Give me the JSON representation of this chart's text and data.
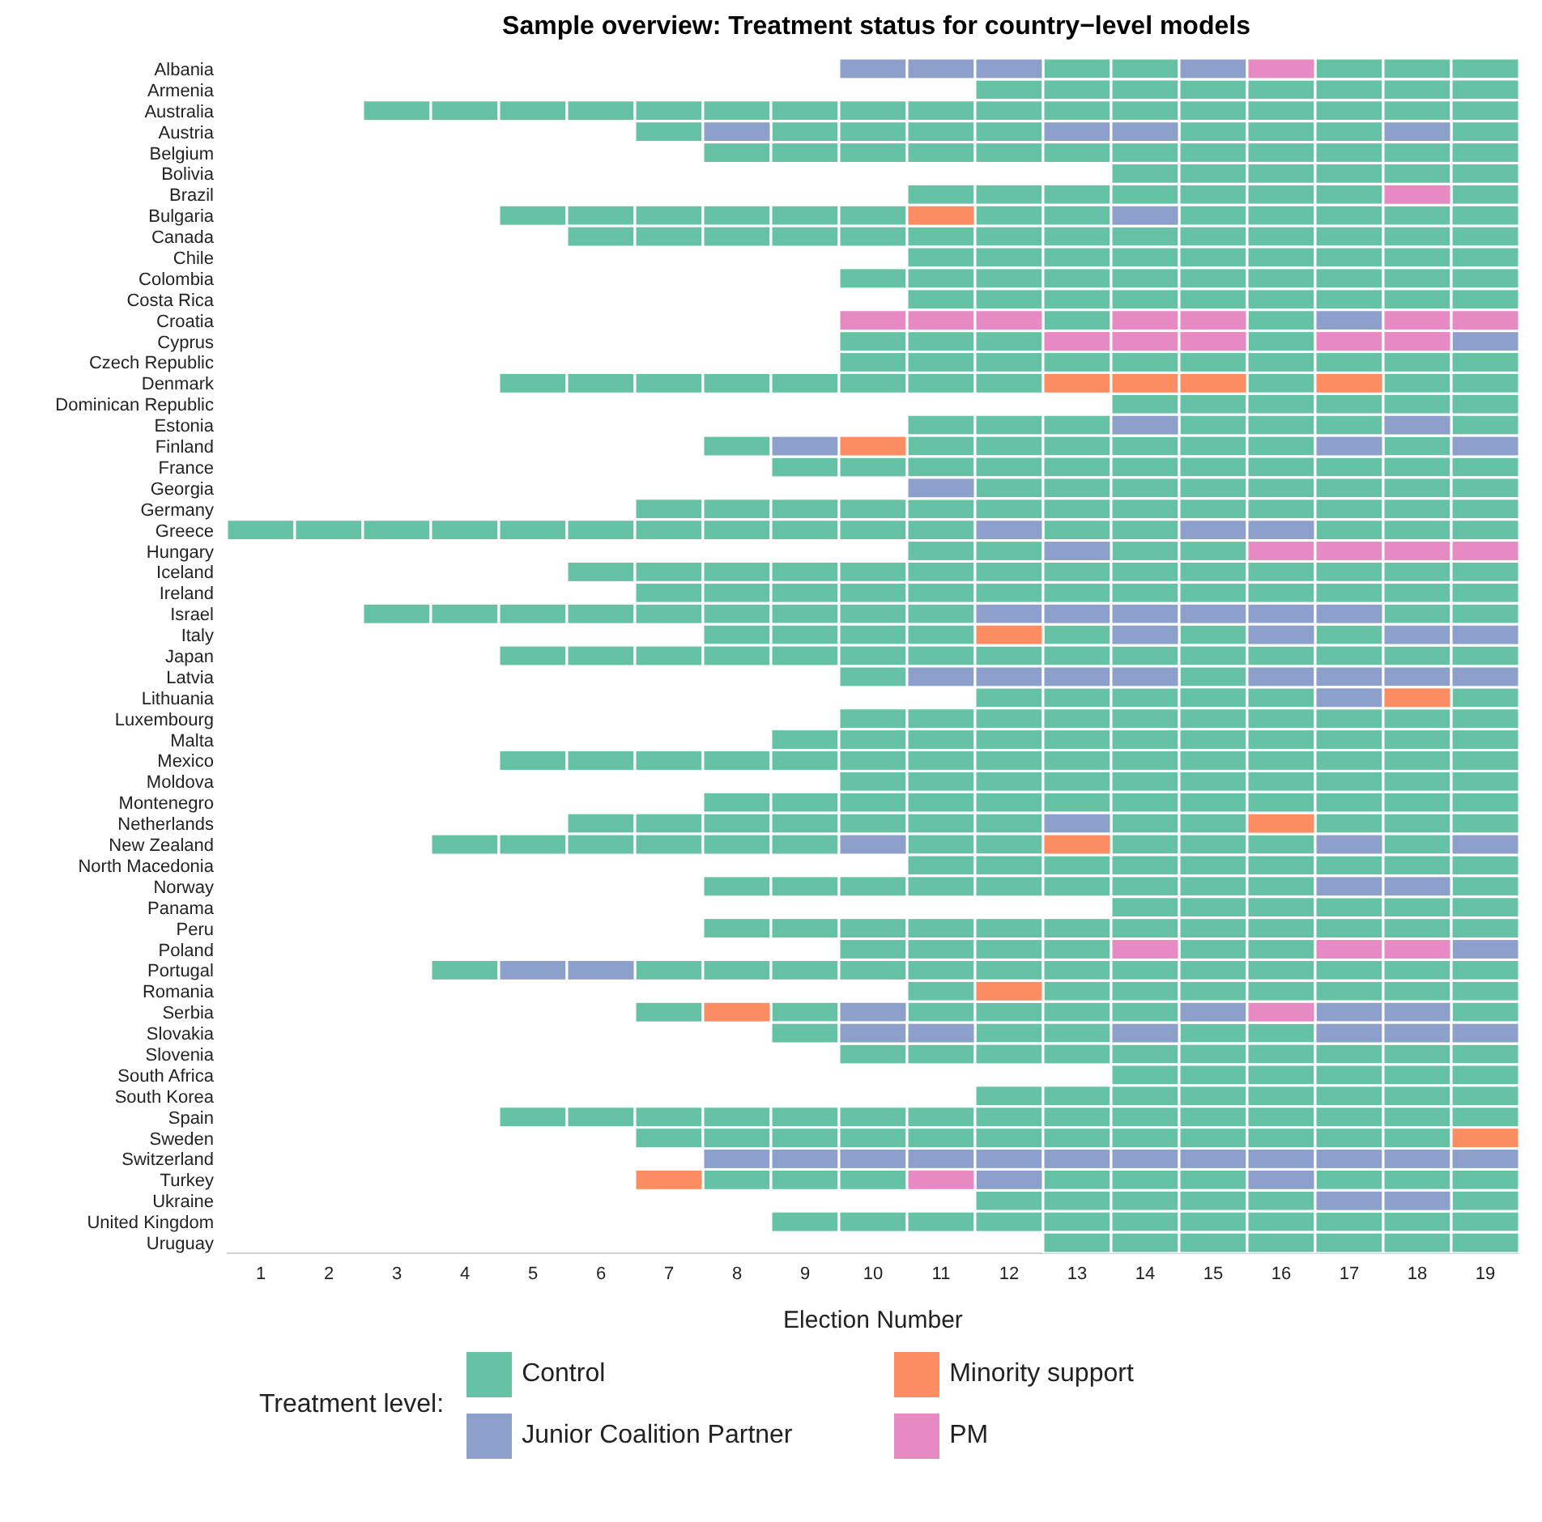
{
  "chart_data": {
    "type": "scatter",
    "orientation": "horizontal",
    "marker": "square",
    "title": "Sample overview: Treatment status for country−level models",
    "xlabel": "Election Number",
    "legend_title": "Treatment level:",
    "legend": "bottom",
    "categories": [
      "Albania",
      "Armenia",
      "Australia",
      "Austria",
      "Belgium",
      "Bolivia",
      "Brazil",
      "Bulgaria",
      "Canada",
      "Chile",
      "Colombia",
      "Costa Rica",
      "Croatia",
      "Cyprus",
      "Czech Republic",
      "Denmark",
      "Dominican Republic",
      "Estonia",
      "Finland",
      "France",
      "Georgia",
      "Germany",
      "Greece",
      "Hungary",
      "Iceland",
      "Ireland",
      "Israel",
      "Italy",
      "Japan",
      "Latvia",
      "Lithuania",
      "Luxembourg",
      "Malta",
      "Mexico",
      "Moldova",
      "Montenegro",
      "Netherlands",
      "New Zealand",
      "North Macedonia",
      "Norway",
      "Panama",
      "Peru",
      "Poland",
      "Portugal",
      "Romania",
      "Serbia",
      "Slovakia",
      "Slovenia",
      "South Africa",
      "South Korea",
      "Spain",
      "Sweden",
      "Switzerland",
      "Turkey",
      "Ukraine",
      "United Kingdom",
      "Uruguay"
    ],
    "xlim": [
      0.5,
      19.5
    ],
    "xticks": [
      1,
      2,
      3,
      4,
      5,
      6,
      7,
      8,
      9,
      10,
      11,
      12,
      13,
      14,
      15,
      16,
      17,
      18,
      19
    ],
    "series": [
      {
        "name": "Control",
        "color": "#66c2a5",
        "x": [
          "Albania",
          "Albania",
          "Albania",
          "Albania",
          "Albania",
          "Armenia",
          "Armenia",
          "Armenia",
          "Armenia",
          "Armenia",
          "Armenia",
          "Armenia",
          "Armenia",
          "Australia",
          "Australia",
          "Australia",
          "Australia",
          "Australia",
          "Australia",
          "Australia",
          "Australia",
          "Australia",
          "Australia",
          "Australia",
          "Australia",
          "Australia",
          "Australia",
          "Australia",
          "Australia",
          "Australia",
          "Austria",
          "Austria",
          "Austria",
          "Austria",
          "Austria",
          "Austria",
          "Austria",
          "Austria",
          "Austria",
          "Belgium",
          "Belgium",
          "Belgium",
          "Belgium",
          "Belgium",
          "Belgium",
          "Belgium",
          "Belgium",
          "Belgium",
          "Belgium",
          "Belgium",
          "Belgium",
          "Bolivia",
          "Bolivia",
          "Bolivia",
          "Bolivia",
          "Bolivia",
          "Bolivia",
          "Brazil",
          "Brazil",
          "Brazil",
          "Brazil",
          "Brazil",
          "Brazil",
          "Brazil",
          "Brazil",
          "Bulgaria",
          "Bulgaria",
          "Bulgaria",
          "Bulgaria",
          "Bulgaria",
          "Bulgaria",
          "Bulgaria",
          "Bulgaria",
          "Bulgaria",
          "Bulgaria",
          "Bulgaria",
          "Bulgaria",
          "Bulgaria",
          "Canada",
          "Canada",
          "Canada",
          "Canada",
          "Canada",
          "Canada",
          "Canada",
          "Canada",
          "Canada",
          "Canada",
          "Canada",
          "Canada",
          "Canada",
          "Canada",
          "Chile",
          "Chile",
          "Chile",
          "Chile",
          "Chile",
          "Chile",
          "Chile",
          "Chile",
          "Chile",
          "Colombia",
          "Colombia",
          "Colombia",
          "Colombia",
          "Colombia",
          "Colombia",
          "Colombia",
          "Colombia",
          "Colombia",
          "Colombia",
          "Costa Rica",
          "Costa Rica",
          "Costa Rica",
          "Costa Rica",
          "Costa Rica",
          "Costa Rica",
          "Costa Rica",
          "Costa Rica",
          "Costa Rica",
          "Croatia",
          "Croatia",
          "Cyprus",
          "Cyprus",
          "Cyprus",
          "Cyprus",
          "Czech Republic",
          "Czech Republic",
          "Czech Republic",
          "Czech Republic",
          "Czech Republic",
          "Czech Republic",
          "Czech Republic",
          "Czech Republic",
          "Czech Republic",
          "Czech Republic",
          "Denmark",
          "Denmark",
          "Denmark",
          "Denmark",
          "Denmark",
          "Denmark",
          "Denmark",
          "Denmark",
          "Denmark",
          "Denmark",
          "Denmark",
          "Dominican Republic",
          "Dominican Republic",
          "Dominican Republic",
          "Dominican Republic",
          "Dominican Republic",
          "Dominican Republic",
          "Estonia",
          "Estonia",
          "Estonia",
          "Estonia",
          "Estonia",
          "Estonia",
          "Estonia",
          "Finland",
          "Finland",
          "Finland",
          "Finland",
          "Finland",
          "Finland",
          "Finland",
          "Finland",
          "France",
          "France",
          "France",
          "France",
          "France",
          "France",
          "France",
          "France",
          "France",
          "France",
          "France",
          "Georgia",
          "Georgia",
          "Georgia",
          "Georgia",
          "Georgia",
          "Georgia",
          "Georgia",
          "Georgia",
          "Germany",
          "Germany",
          "Germany",
          "Germany",
          "Germany",
          "Germany",
          "Germany",
          "Germany",
          "Germany",
          "Germany",
          "Germany",
          "Germany",
          "Germany",
          "Greece",
          "Greece",
          "Greece",
          "Greece",
          "Greece",
          "Greece",
          "Greece",
          "Greece",
          "Greece",
          "Greece",
          "Greece",
          "Greece",
          "Greece",
          "Greece",
          "Greece",
          "Greece",
          "Hungary",
          "Hungary",
          "Hungary",
          "Hungary",
          "Iceland",
          "Iceland",
          "Iceland",
          "Iceland",
          "Iceland",
          "Iceland",
          "Iceland",
          "Iceland",
          "Iceland",
          "Iceland",
          "Iceland",
          "Iceland",
          "Iceland",
          "Iceland",
          "Ireland",
          "Ireland",
          "Ireland",
          "Ireland",
          "Ireland",
          "Ireland",
          "Ireland",
          "Ireland",
          "Ireland",
          "Ireland",
          "Ireland",
          "Ireland",
          "Ireland",
          "Israel",
          "Israel",
          "Israel",
          "Israel",
          "Israel",
          "Israel",
          "Israel",
          "Israel",
          "Israel",
          "Israel",
          "Israel",
          "Italy",
          "Italy",
          "Italy",
          "Italy",
          "Italy",
          "Italy",
          "Italy",
          "Japan",
          "Japan",
          "Japan",
          "Japan",
          "Japan",
          "Japan",
          "Japan",
          "Japan",
          "Japan",
          "Japan",
          "Japan",
          "Japan",
          "Japan",
          "Japan",
          "Japan",
          "Latvia",
          "Latvia",
          "Lithuania",
          "Lithuania",
          "Lithuania",
          "Lithuania",
          "Lithuania",
          "Lithuania",
          "Luxembourg",
          "Luxembourg",
          "Luxembourg",
          "Luxembourg",
          "Luxembourg",
          "Luxembourg",
          "Luxembourg",
          "Luxembourg",
          "Luxembourg",
          "Luxembourg",
          "Malta",
          "Malta",
          "Malta",
          "Malta",
          "Malta",
          "Malta",
          "Malta",
          "Malta",
          "Malta",
          "Malta",
          "Malta",
          "Mexico",
          "Mexico",
          "Mexico",
          "Mexico",
          "Mexico",
          "Mexico",
          "Mexico",
          "Mexico",
          "Mexico",
          "Mexico",
          "Mexico",
          "Mexico",
          "Mexico",
          "Mexico",
          "Mexico",
          "Moldova",
          "Moldova",
          "Moldova",
          "Moldova",
          "Moldova",
          "Moldova",
          "Moldova",
          "Moldova",
          "Moldova",
          "Moldova",
          "Montenegro",
          "Montenegro",
          "Montenegro",
          "Montenegro",
          "Montenegro",
          "Montenegro",
          "Montenegro",
          "Montenegro",
          "Montenegro",
          "Montenegro",
          "Montenegro",
          "Montenegro",
          "Netherlands",
          "Netherlands",
          "Netherlands",
          "Netherlands",
          "Netherlands",
          "Netherlands",
          "Netherlands",
          "Netherlands",
          "Netherlands",
          "Netherlands",
          "Netherlands",
          "Netherlands",
          "New Zealand",
          "New Zealand",
          "New Zealand",
          "New Zealand",
          "New Zealand",
          "New Zealand",
          "New Zealand",
          "New Zealand",
          "New Zealand",
          "New Zealand",
          "New Zealand",
          "New Zealand",
          "North Macedonia",
          "North Macedonia",
          "North Macedonia",
          "North Macedonia",
          "North Macedonia",
          "North Macedonia",
          "North Macedonia",
          "North Macedonia",
          "North Macedonia",
          "Norway",
          "Norway",
          "Norway",
          "Norway",
          "Norway",
          "Norway",
          "Norway",
          "Norway",
          "Norway",
          "Norway",
          "Panama",
          "Panama",
          "Panama",
          "Panama",
          "Panama",
          "Panama",
          "Peru",
          "Peru",
          "Peru",
          "Peru",
          "Peru",
          "Peru",
          "Peru",
          "Peru",
          "Peru",
          "Peru",
          "Peru",
          "Peru",
          "Poland",
          "Poland",
          "Poland",
          "Poland",
          "Poland",
          "Poland",
          "Portugal",
          "Portugal",
          "Portugal",
          "Portugal",
          "Portugal",
          "Portugal",
          "Portugal",
          "Portugal",
          "Portugal",
          "Portugal",
          "Portugal",
          "Portugal",
          "Portugal",
          "Portugal",
          "Romania",
          "Romania",
          "Romania",
          "Romania",
          "Romania",
          "Romania",
          "Romania",
          "Romania",
          "Serbia",
          "Serbia",
          "Serbia",
          "Serbia",
          "Serbia",
          "Serbia",
          "Serbia",
          "Slovakia",
          "Slovakia",
          "Slovakia",
          "Slovakia",
          "Slovakia",
          "Slovenia",
          "Slovenia",
          "Slovenia",
          "Slovenia",
          "Slovenia",
          "Slovenia",
          "Slovenia",
          "Slovenia",
          "Slovenia",
          "Slovenia",
          "South Africa",
          "South Africa",
          "South Africa",
          "South Africa",
          "South Africa",
          "South Africa",
          "South Korea",
          "South Korea",
          "South Korea",
          "South Korea",
          "South Korea",
          "South Korea",
          "South Korea",
          "South Korea",
          "Spain",
          "Spain",
          "Spain",
          "Spain",
          "Spain",
          "Spain",
          "Spain",
          "Spain",
          "Spain",
          "Spain",
          "Spain",
          "Spain",
          "Spain",
          "Spain",
          "Spain",
          "Sweden",
          "Sweden",
          "Sweden",
          "Sweden",
          "Sweden",
          "Sweden",
          "Sweden",
          "Sweden",
          "Sweden",
          "Sweden",
          "Sweden",
          "Sweden",
          "Turkey",
          "Turkey",
          "Turkey",
          "Turkey",
          "Turkey",
          "Turkey",
          "Turkey",
          "Turkey",
          "Turkey",
          "Ukraine",
          "Ukraine",
          "Ukraine",
          "Ukraine",
          "Ukraine",
          "Ukraine",
          "United Kingdom",
          "United Kingdom",
          "United Kingdom",
          "United Kingdom",
          "United Kingdom",
          "United Kingdom",
          "United Kingdom",
          "United Kingdom",
          "United Kingdom",
          "United Kingdom",
          "United Kingdom",
          "Uruguay",
          "Uruguay",
          "Uruguay",
          "Uruguay",
          "Uruguay",
          "Uruguay",
          "Uruguay"
        ],
        "values": [
          13,
          14,
          17,
          18,
          19,
          12,
          13,
          14,
          15,
          16,
          17,
          18,
          19,
          3,
          4,
          5,
          6,
          7,
          8,
          9,
          10,
          11,
          12,
          13,
          14,
          15,
          16,
          17,
          18,
          19,
          7,
          9,
          10,
          11,
          12,
          15,
          16,
          17,
          19,
          8,
          9,
          10,
          11,
          12,
          13,
          14,
          15,
          16,
          17,
          18,
          19,
          14,
          15,
          16,
          17,
          18,
          19,
          11,
          12,
          13,
          14,
          15,
          16,
          17,
          19,
          5,
          6,
          7,
          8,
          9,
          10,
          12,
          13,
          15,
          16,
          17,
          18,
          19,
          6,
          7,
          8,
          9,
          10,
          11,
          12,
          13,
          14,
          15,
          16,
          17,
          18,
          19,
          11,
          12,
          13,
          14,
          15,
          16,
          17,
          18,
          19,
          10,
          11,
          12,
          13,
          14,
          15,
          16,
          17,
          18,
          19,
          11,
          12,
          13,
          14,
          15,
          16,
          17,
          18,
          19,
          13,
          16,
          10,
          11,
          12,
          16,
          10,
          11,
          12,
          13,
          14,
          15,
          16,
          17,
          18,
          19,
          5,
          6,
          7,
          8,
          9,
          10,
          11,
          12,
          16,
          18,
          19,
          14,
          15,
          16,
          17,
          18,
          19,
          11,
          12,
          13,
          15,
          16,
          17,
          19,
          8,
          11,
          12,
          13,
          14,
          15,
          16,
          18,
          9,
          10,
          11,
          12,
          13,
          14,
          15,
          16,
          17,
          18,
          19,
          12,
          13,
          14,
          15,
          16,
          17,
          18,
          19,
          7,
          8,
          9,
          10,
          11,
          12,
          13,
          14,
          15,
          16,
          17,
          18,
          19,
          1,
          2,
          3,
          4,
          5,
          6,
          7,
          8,
          9,
          10,
          11,
          13,
          14,
          17,
          18,
          19,
          11,
          12,
          14,
          15,
          6,
          7,
          8,
          9,
          10,
          11,
          12,
          13,
          14,
          15,
          16,
          17,
          18,
          19,
          7,
          8,
          9,
          10,
          11,
          12,
          13,
          14,
          15,
          16,
          17,
          18,
          19,
          3,
          4,
          5,
          6,
          7,
          8,
          9,
          10,
          11,
          18,
          19,
          8,
          9,
          10,
          11,
          13,
          15,
          17,
          5,
          6,
          7,
          8,
          9,
          10,
          11,
          12,
          13,
          14,
          15,
          16,
          17,
          18,
          19,
          10,
          15,
          12,
          13,
          14,
          15,
          16,
          19,
          10,
          11,
          12,
          13,
          14,
          15,
          16,
          17,
          18,
          19,
          9,
          10,
          11,
          12,
          13,
          14,
          15,
          16,
          17,
          18,
          19,
          5,
          6,
          7,
          8,
          9,
          10,
          11,
          12,
          13,
          14,
          15,
          16,
          17,
          18,
          19,
          10,
          11,
          12,
          13,
          14,
          15,
          16,
          17,
          18,
          19,
          8,
          9,
          10,
          11,
          12,
          13,
          14,
          15,
          16,
          17,
          18,
          19,
          6,
          7,
          8,
          9,
          10,
          11,
          12,
          14,
          15,
          17,
          18,
          19,
          4,
          5,
          6,
          7,
          8,
          9,
          11,
          12,
          14,
          15,
          16,
          18,
          11,
          12,
          13,
          14,
          15,
          16,
          17,
          18,
          19,
          8,
          9,
          10,
          11,
          12,
          13,
          14,
          15,
          16,
          19,
          14,
          15,
          16,
          17,
          18,
          19,
          8,
          9,
          10,
          11,
          12,
          13,
          14,
          15,
          16,
          17,
          18,
          19,
          10,
          11,
          12,
          13,
          15,
          16,
          4,
          7,
          8,
          9,
          10,
          11,
          12,
          13,
          14,
          15,
          16,
          17,
          18,
          19,
          11,
          13,
          14,
          15,
          16,
          17,
          18,
          19,
          7,
          9,
          11,
          12,
          13,
          14,
          19,
          9,
          12,
          13,
          15,
          16,
          10,
          11,
          12,
          13,
          14,
          15,
          16,
          17,
          18,
          19,
          14,
          15,
          16,
          17,
          18,
          19,
          12,
          13,
          14,
          15,
          16,
          17,
          18,
          19,
          5,
          6,
          7,
          8,
          9,
          10,
          11,
          12,
          13,
          14,
          15,
          16,
          17,
          18,
          19,
          7,
          8,
          9,
          10,
          11,
          12,
          13,
          14,
          15,
          16,
          17,
          18,
          8,
          9,
          10,
          13,
          14,
          15,
          17,
          18,
          19,
          12,
          13,
          14,
          15,
          16,
          19,
          9,
          10,
          11,
          12,
          13,
          14,
          15,
          16,
          17,
          18,
          19,
          13,
          14,
          15,
          16,
          17,
          18,
          19
        ]
      },
      {
        "name": "Junior Coalition Partner",
        "color": "#8da0cb",
        "x": [
          "Albania",
          "Albania",
          "Albania",
          "Albania",
          "Austria",
          "Austria",
          "Austria",
          "Austria",
          "Bulgaria",
          "Croatia",
          "Cyprus",
          "Estonia",
          "Estonia",
          "Finland",
          "Finland",
          "Finland",
          "Georgia",
          "Greece",
          "Greece",
          "Greece",
          "Hungary",
          "Israel",
          "Israel",
          "Israel",
          "Israel",
          "Israel",
          "Israel",
          "Italy",
          "Italy",
          "Italy",
          "Italy",
          "Latvia",
          "Latvia",
          "Latvia",
          "Latvia",
          "Latvia",
          "Latvia",
          "Latvia",
          "Latvia",
          "Lithuania",
          "Netherlands",
          "New Zealand",
          "New Zealand",
          "New Zealand",
          "Norway",
          "Norway",
          "Poland",
          "Portugal",
          "Portugal",
          "Serbia",
          "Serbia",
          "Serbia",
          "Serbia",
          "Slovakia",
          "Slovakia",
          "Slovakia",
          "Slovakia",
          "Slovakia",
          "Slovakia",
          "Switzerland",
          "Switzerland",
          "Switzerland",
          "Switzerland",
          "Switzerland",
          "Switzerland",
          "Switzerland",
          "Switzerland",
          "Switzerland",
          "Switzerland",
          "Switzerland",
          "Switzerland",
          "Turkey",
          "Turkey",
          "Ukraine",
          "Ukraine"
        ],
        "values": [
          10,
          11,
          12,
          15,
          8,
          13,
          14,
          18,
          14,
          17,
          19,
          14,
          18,
          9,
          17,
          19,
          11,
          12,
          15,
          16,
          13,
          12,
          13,
          14,
          15,
          16,
          17,
          14,
          16,
          18,
          19,
          11,
          12,
          13,
          14,
          16,
          17,
          18,
          19,
          17,
          13,
          10,
          17,
          19,
          17,
          18,
          19,
          5,
          6,
          10,
          15,
          17,
          18,
          10,
          11,
          14,
          17,
          18,
          19,
          8,
          9,
          10,
          11,
          12,
          13,
          14,
          15,
          16,
          17,
          18,
          19,
          12,
          16,
          17,
          18
        ]
      },
      {
        "name": "Minority support",
        "color": "#fc8d62",
        "x": [
          "Bulgaria",
          "Denmark",
          "Denmark",
          "Denmark",
          "Denmark",
          "Finland",
          "Italy",
          "Lithuania",
          "Netherlands",
          "New Zealand",
          "Romania",
          "Serbia",
          "Sweden",
          "Turkey"
        ],
        "values": [
          11,
          13,
          14,
          15,
          17,
          10,
          12,
          18,
          16,
          13,
          12,
          8,
          19,
          7
        ]
      },
      {
        "name": "PM",
        "color": "#e78ac3",
        "x": [
          "Albania",
          "Brazil",
          "Croatia",
          "Croatia",
          "Croatia",
          "Croatia",
          "Croatia",
          "Croatia",
          "Croatia",
          "Cyprus",
          "Cyprus",
          "Cyprus",
          "Cyprus",
          "Cyprus",
          "Hungary",
          "Hungary",
          "Hungary",
          "Hungary",
          "Poland",
          "Poland",
          "Poland",
          "Serbia",
          "Turkey"
        ],
        "values": [
          16,
          18,
          10,
          11,
          12,
          14,
          15,
          18,
          19,
          13,
          14,
          15,
          17,
          18,
          16,
          17,
          18,
          19,
          14,
          17,
          18,
          16,
          11
        ]
      }
    ]
  }
}
